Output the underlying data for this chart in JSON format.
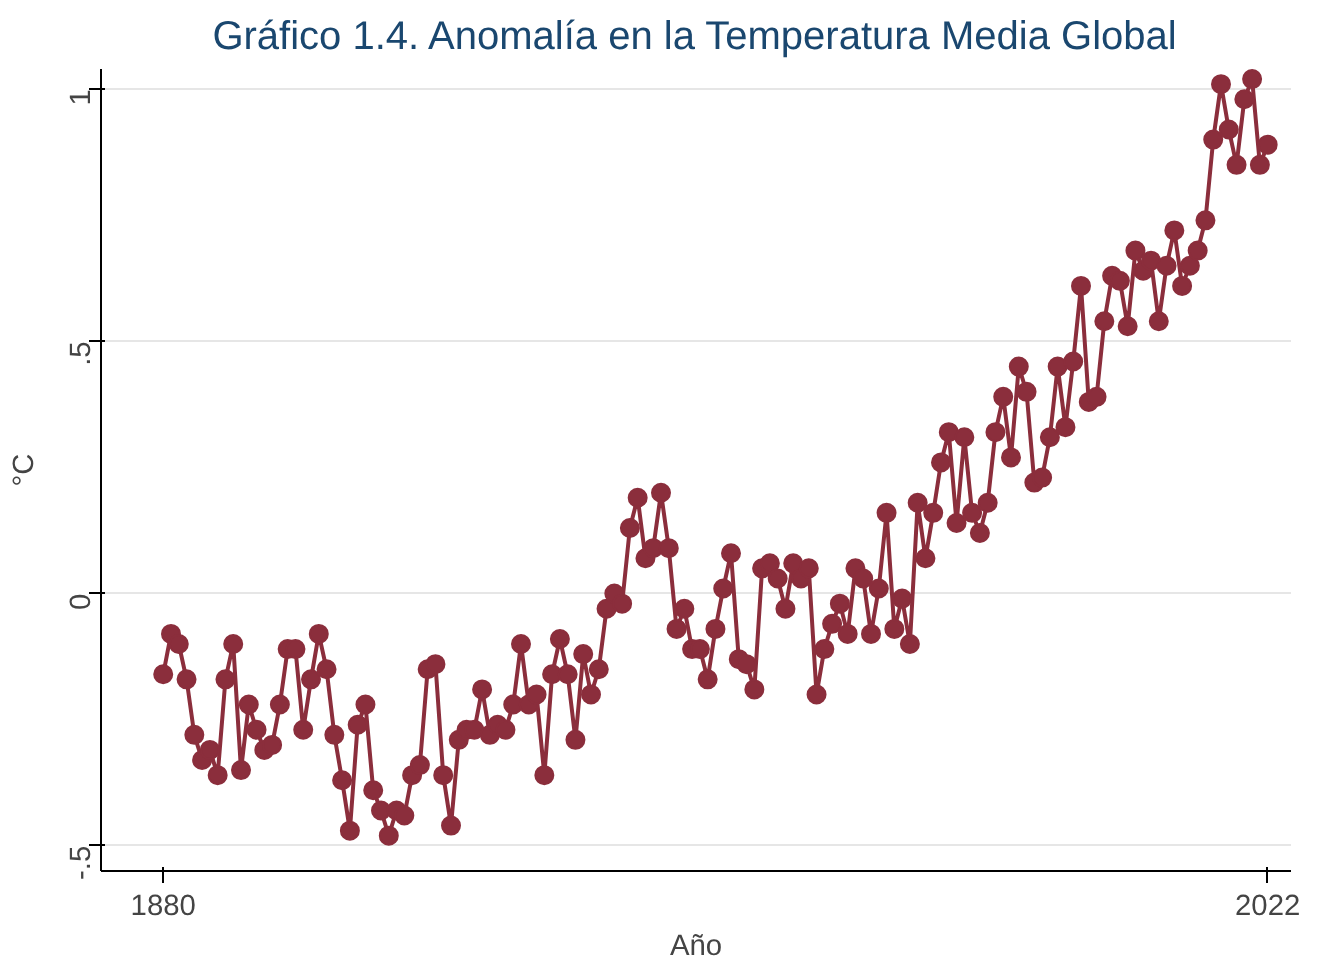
{
  "chart_data": {
    "type": "line",
    "title": "Gráfico 1.4. Anomalía en la Temperatura Media Global",
    "xlabel": "Año",
    "ylabel": "°C",
    "x": [
      1880,
      1881,
      1882,
      1883,
      1884,
      1885,
      1886,
      1887,
      1888,
      1889,
      1890,
      1891,
      1892,
      1893,
      1894,
      1895,
      1896,
      1897,
      1898,
      1899,
      1900,
      1901,
      1902,
      1903,
      1904,
      1905,
      1906,
      1907,
      1908,
      1909,
      1910,
      1911,
      1912,
      1913,
      1914,
      1915,
      1916,
      1917,
      1918,
      1919,
      1920,
      1921,
      1922,
      1923,
      1924,
      1925,
      1926,
      1927,
      1928,
      1929,
      1930,
      1931,
      1932,
      1933,
      1934,
      1935,
      1936,
      1937,
      1938,
      1939,
      1940,
      1941,
      1942,
      1943,
      1944,
      1945,
      1946,
      1947,
      1948,
      1949,
      1950,
      1951,
      1952,
      1953,
      1954,
      1955,
      1956,
      1957,
      1958,
      1959,
      1960,
      1961,
      1962,
      1963,
      1964,
      1965,
      1966,
      1967,
      1968,
      1969,
      1970,
      1971,
      1972,
      1973,
      1974,
      1975,
      1976,
      1977,
      1978,
      1979,
      1980,
      1981,
      1982,
      1983,
      1984,
      1985,
      1986,
      1987,
      1988,
      1989,
      1990,
      1991,
      1992,
      1993,
      1994,
      1995,
      1996,
      1997,
      1998,
      1999,
      2000,
      2001,
      2002,
      2003,
      2004,
      2005,
      2006,
      2007,
      2008,
      2009,
      2010,
      2011,
      2012,
      2013,
      2014,
      2015,
      2016,
      2017,
      2018,
      2019,
      2020,
      2021,
      2022
    ],
    "series": [
      {
        "color": "#8b2e3c",
        "values": [
          -0.16,
          -0.08,
          -0.1,
          -0.17,
          -0.28,
          -0.33,
          -0.31,
          -0.36,
          -0.17,
          -0.1,
          -0.35,
          -0.22,
          -0.27,
          -0.31,
          -0.3,
          -0.22,
          -0.11,
          -0.11,
          -0.27,
          -0.17,
          -0.08,
          -0.15,
          -0.28,
          -0.37,
          -0.47,
          -0.26,
          -0.22,
          -0.39,
          -0.43,
          -0.48,
          -0.43,
          -0.44,
          -0.36,
          -0.34,
          -0.15,
          -0.14,
          -0.36,
          -0.46,
          -0.29,
          -0.27,
          -0.27,
          -0.19,
          -0.28,
          -0.26,
          -0.27,
          -0.22,
          -0.1,
          -0.22,
          -0.2,
          -0.36,
          -0.16,
          -0.09,
          -0.16,
          -0.29,
          -0.12,
          -0.2,
          -0.15,
          -0.03,
          0.0,
          -0.02,
          0.13,
          0.19,
          0.07,
          0.09,
          0.2,
          0.09,
          -0.07,
          -0.03,
          -0.11,
          -0.11,
          -0.17,
          -0.07,
          0.01,
          0.08,
          -0.13,
          -0.14,
          -0.19,
          0.05,
          0.06,
          0.03,
          -0.03,
          0.06,
          0.03,
          0.05,
          -0.2,
          -0.11,
          -0.06,
          -0.02,
          -0.08,
          0.05,
          0.03,
          -0.08,
          0.01,
          0.16,
          -0.07,
          -0.01,
          -0.1,
          0.18,
          0.07,
          0.16,
          0.26,
          0.32,
          0.14,
          0.31,
          0.16,
          0.12,
          0.18,
          0.32,
          0.39,
          0.27,
          0.45,
          0.4,
          0.22,
          0.23,
          0.31,
          0.45,
          0.33,
          0.46,
          0.61,
          0.38,
          0.39,
          0.54,
          0.63,
          0.62,
          0.53,
          0.68,
          0.64,
          0.66,
          0.54,
          0.65,
          0.72,
          0.61,
          0.65,
          0.68,
          0.74,
          0.9,
          1.01,
          0.92,
          0.85,
          0.98,
          1.02,
          0.85,
          0.89
        ]
      }
    ],
    "xlim": [
      1872,
      2025
    ],
    "xticks": [
      1880,
      2022
    ],
    "ylim": [
      -0.55,
      1.04
    ],
    "yticks": [
      {
        "value": -0.5,
        "label": "-.5"
      },
      0,
      {
        "value": 0.5,
        "label": ".5"
      },
      1
    ],
    "grid": "y",
    "marker": "circle",
    "line_style": "solid"
  }
}
